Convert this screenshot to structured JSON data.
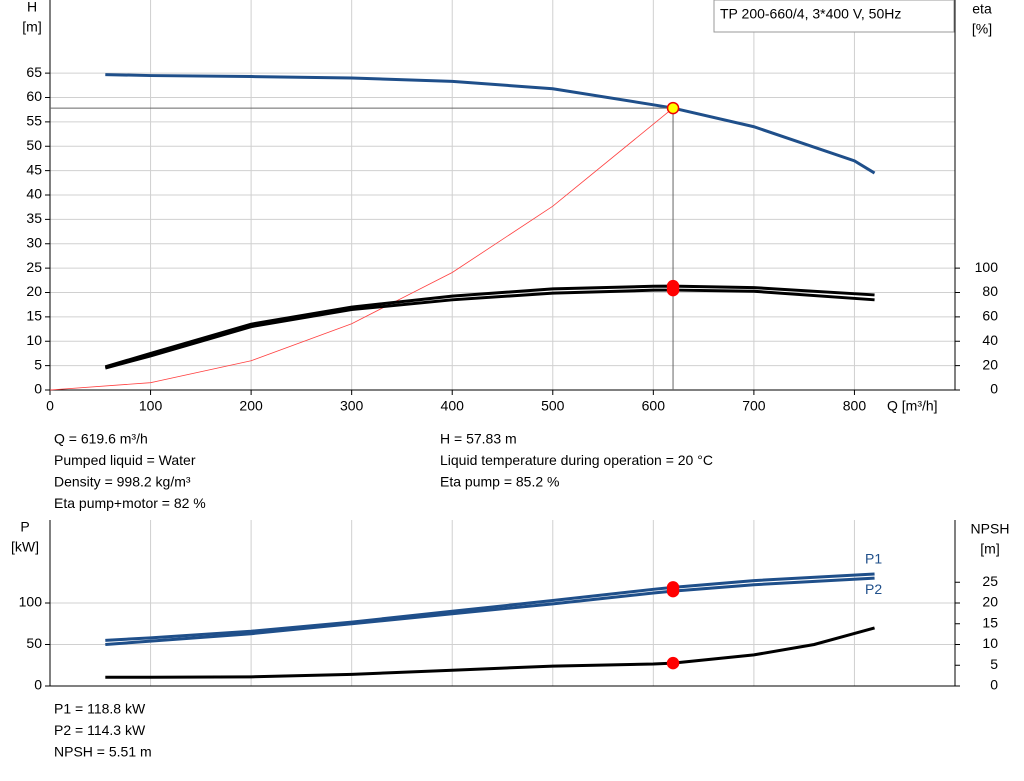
{
  "title": "TP 200-660/4, 3*400 V, 50Hz",
  "chart_data": [
    {
      "type": "line",
      "x_label": "Q [m³/h]",
      "y_label": [
        "H",
        "[m]"
      ],
      "y2_label": [
        "eta",
        "[%]"
      ],
      "xlim": [
        0,
        900
      ],
      "xticks": [
        0,
        100,
        200,
        300,
        400,
        500,
        600,
        700,
        800
      ],
      "ylim": [
        0,
        80
      ],
      "yticks": [
        0,
        5,
        10,
        15,
        20,
        25,
        30,
        35,
        40,
        45,
        50,
        55,
        60,
        65
      ],
      "y2lim": [
        0,
        320
      ],
      "y2ticks": [
        0,
        20,
        40,
        60,
        80,
        100
      ],
      "grid": true,
      "operating_x": 619.6,
      "series": [
        {
          "color": "#1f4f8a",
          "width": 3,
          "marker": "#ffff00",
          "x": [
            55,
            100,
            200,
            300,
            400,
            500,
            600,
            619.6,
            700,
            800,
            820
          ],
          "values": [
            64.7,
            64.5,
            64.3,
            64,
            63.3,
            61.8,
            58.5,
            57.83,
            54,
            47,
            44.5
          ]
        },
        {
          "color": "#ff4040",
          "width": 0.8,
          "x": [
            0,
            100,
            200,
            300,
            400,
            500,
            619.6
          ],
          "values": [
            0,
            1.5,
            6,
            13.6,
            24.1,
            37.7,
            57.83
          ]
        },
        {
          "color": "#000000",
          "width": 3,
          "axis": "y2",
          "marker": "#ff0000",
          "x": [
            55,
            100,
            200,
            300,
            400,
            500,
            600,
            619.6,
            700,
            820
          ],
          "values": [
            19,
            30,
            54,
            68,
            77,
            83,
            85.1,
            85.2,
            84,
            78
          ]
        },
        {
          "color": "#000000",
          "width": 3,
          "axis": "y2",
          "marker": "#ff0000",
          "x": [
            55,
            100,
            200,
            300,
            400,
            500,
            600,
            619.6,
            700,
            820
          ],
          "values": [
            18,
            28,
            52,
            66,
            74,
            79.5,
            81.9,
            82,
            81,
            74
          ]
        }
      ]
    },
    {
      "type": "line",
      "y_label": [
        "P",
        "[kW]"
      ],
      "y2_label": [
        "NPSH",
        "[m]"
      ],
      "xlim": [
        0,
        900
      ],
      "ylim": [
        0,
        200
      ],
      "yticks": [
        0,
        50,
        100
      ],
      "y2lim": [
        0,
        40
      ],
      "y2ticks": [
        0,
        5,
        10,
        15,
        20,
        25
      ],
      "grid": true,
      "operating_x": 619.6,
      "series": [
        {
          "name": "P1",
          "color": "#1f4f8a",
          "width": 3,
          "marker": "#ff0000",
          "x": [
            55,
            100,
            200,
            300,
            400,
            500,
            600,
            619.6,
            700,
            820
          ],
          "values": [
            55,
            58,
            66,
            77,
            90,
            103,
            116.5,
            118.8,
            127,
            135
          ]
        },
        {
          "name": "P2",
          "color": "#1f4f8a",
          "width": 3,
          "marker": "#ff0000",
          "x": [
            55,
            100,
            200,
            300,
            400,
            500,
            600,
            619.6,
            700,
            820
          ],
          "values": [
            50,
            54,
            63,
            75,
            87,
            99,
            112,
            114.3,
            122,
            130
          ]
        },
        {
          "color": "#000000",
          "width": 3,
          "axis": "y2",
          "marker": "#ff0000",
          "x": [
            55,
            100,
            200,
            300,
            400,
            500,
            600,
            619.6,
            700,
            760,
            820
          ],
          "values": [
            2.1,
            2.1,
            2.2,
            2.8,
            3.8,
            4.8,
            5.3,
            5.51,
            7.5,
            10,
            14
          ]
        }
      ]
    }
  ],
  "info_left": [
    "Q = 619.6 m³/h",
    "Pumped liquid = Water",
    "Density = 998.2 kg/m³",
    "Eta pump+motor = 82 %"
  ],
  "info_right": [
    "H = 57.83 m",
    "Liquid temperature during operation = 20 °C",
    "Eta pump = 85.2 %"
  ],
  "info_bottom": [
    "P1 = 118.8 kW",
    "P2 = 114.3 kW",
    "NPSH = 5.51 m"
  ]
}
